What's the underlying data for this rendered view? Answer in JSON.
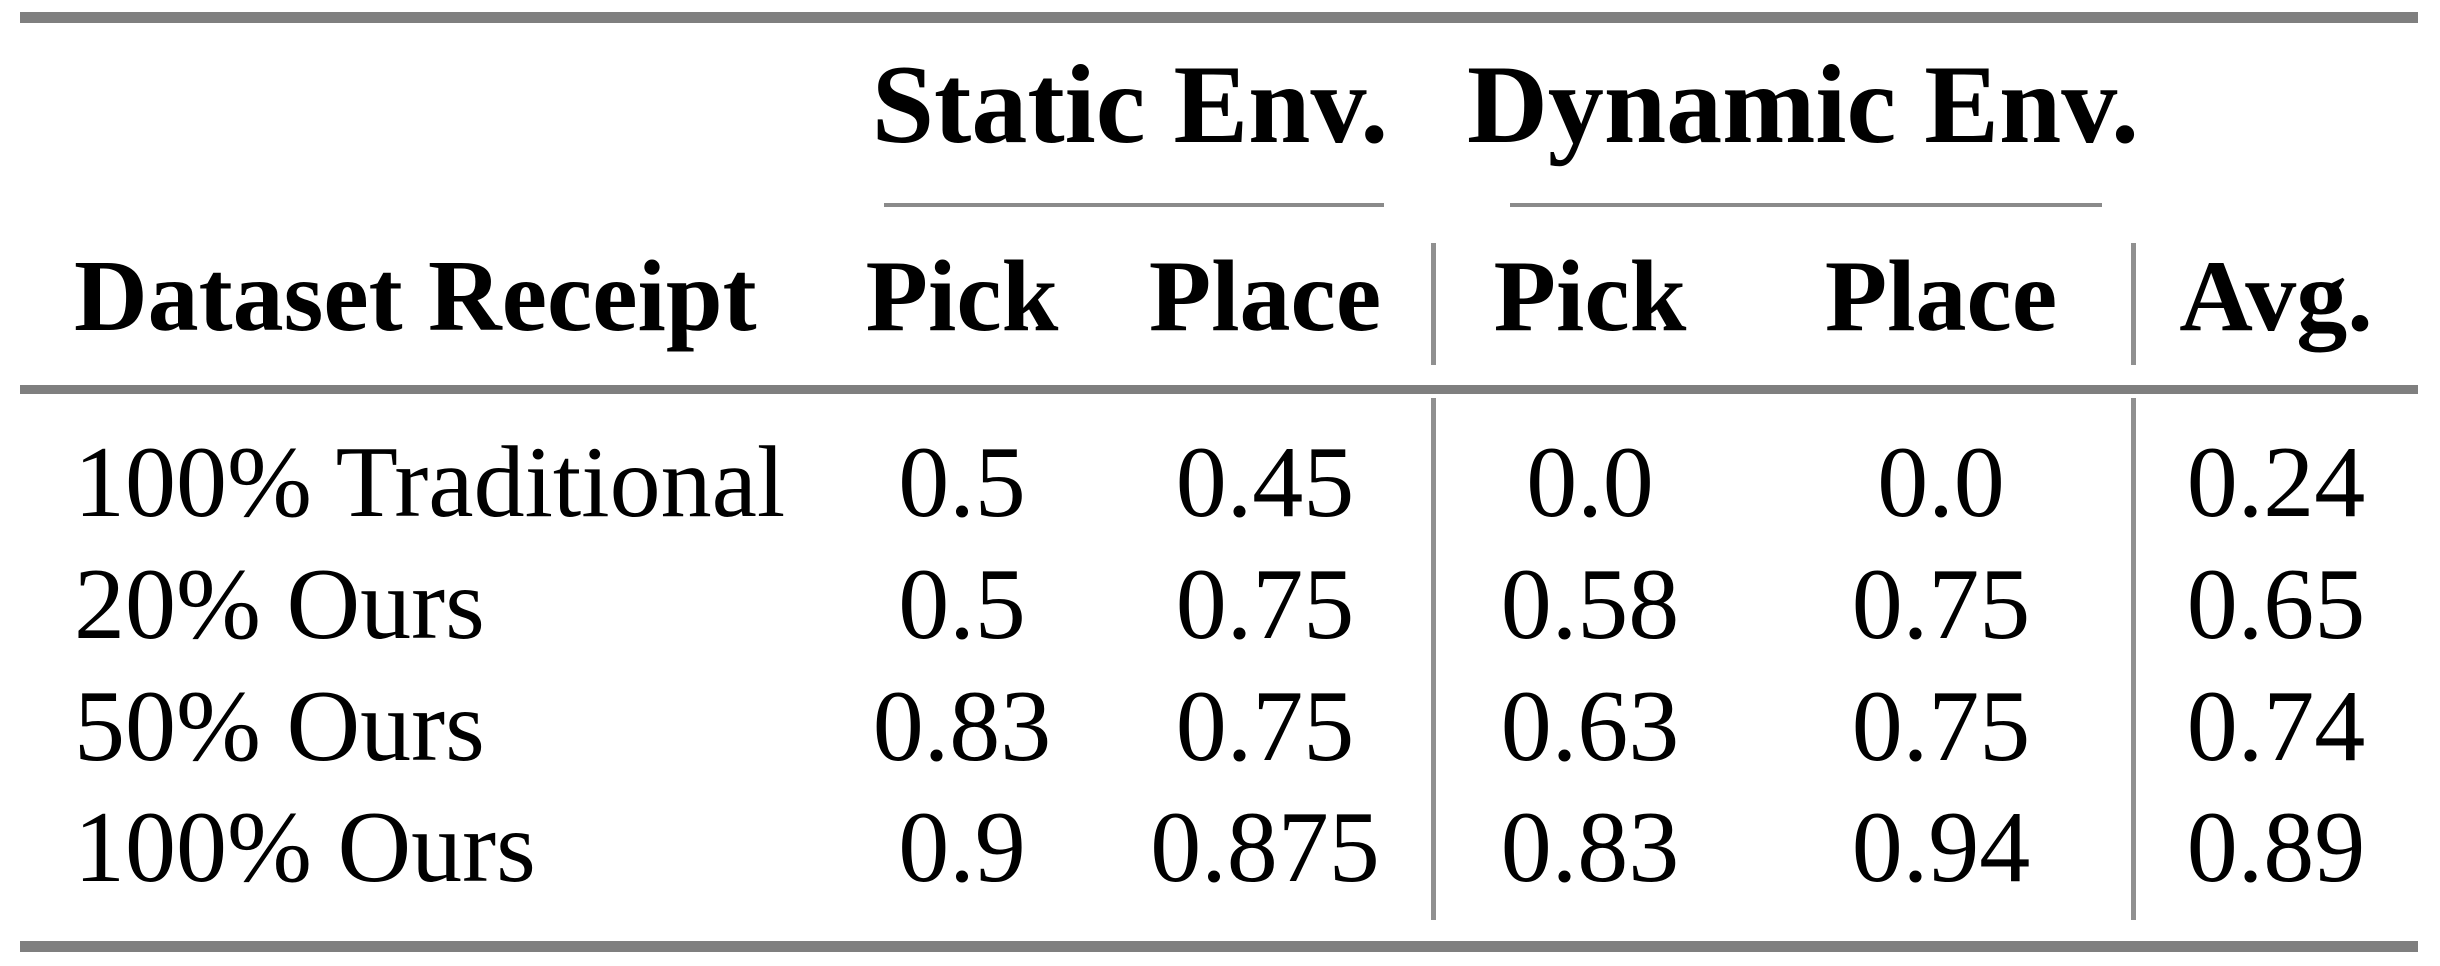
{
  "table": {
    "col_groups": {
      "static": "Static Env.",
      "dynamic": "Dynamic Env."
    },
    "headers": {
      "row_label": "Dataset Receipt",
      "static_pick": "Pick",
      "static_place": "Place",
      "dynamic_pick": "Pick",
      "dynamic_place": "Place",
      "avg": "Avg."
    },
    "rows": [
      {
        "label": "100% Traditional",
        "cells": [
          "0.5",
          "0.45",
          "0.0",
          "0.0",
          "0.24"
        ]
      },
      {
        "label": "20% Ours",
        "cells": [
          "0.5",
          "0.75",
          "0.58",
          "0.75",
          "0.65"
        ]
      },
      {
        "label": "50% Ours",
        "cells": [
          "0.83",
          "0.75",
          "0.63",
          "0.75",
          "0.74"
        ]
      },
      {
        "label": "100% Ours",
        "cells": [
          "0.9",
          "0.875",
          "0.83",
          "0.94",
          "0.89"
        ]
      }
    ]
  },
  "colors": {
    "rule": "#7f7f7f",
    "cmidrule": "#8a8a8a",
    "vline": "#909090",
    "text": "#000000",
    "background": "#ffffff"
  },
  "chart_data": {
    "type": "table",
    "title": "",
    "column_groups": [
      "Static Env.",
      "Dynamic Env."
    ],
    "columns": [
      "Dataset Receipt",
      "Static Env. Pick",
      "Static Env. Place",
      "Dynamic Env. Pick",
      "Dynamic Env. Place",
      "Avg."
    ],
    "rows": [
      [
        "100% Traditional",
        0.5,
        0.45,
        0.0,
        0.0,
        0.24
      ],
      [
        "20% Ours",
        0.5,
        0.75,
        0.58,
        0.75,
        0.65
      ],
      [
        "50% Ours",
        0.83,
        0.75,
        0.63,
        0.75,
        0.74
      ],
      [
        "100% Ours",
        0.9,
        0.875,
        0.83,
        0.94,
        0.89
      ]
    ]
  }
}
